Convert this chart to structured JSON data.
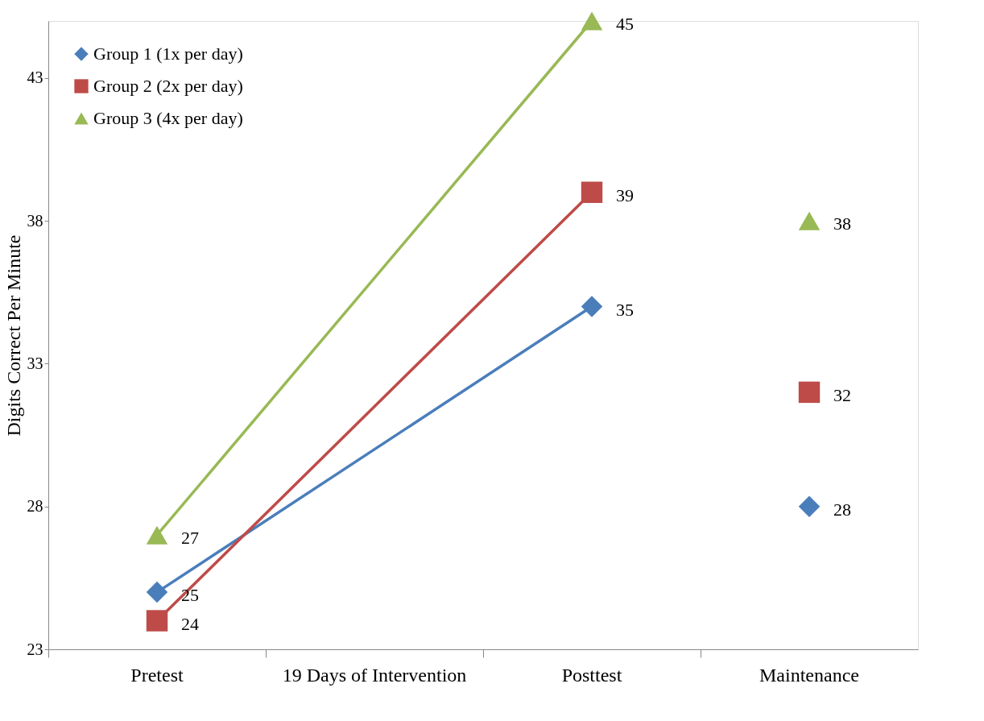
{
  "chart_data": {
    "type": "line",
    "ylabel": "Digits Correct Per Minute",
    "categories": [
      "Pretest",
      "19 Days of Intervention",
      "Posttest",
      "Maintenance"
    ],
    "ylim": [
      23,
      45
    ],
    "yticks": [
      23,
      28,
      33,
      38,
      43
    ],
    "grid": false,
    "legend": "top left",
    "data_labels": true,
    "series": [
      {
        "name": "Group 1 (1x per day)",
        "color": "#4a7ebb",
        "marker": "diamond",
        "values": [
          25,
          null,
          35,
          null
        ]
      },
      {
        "name": "Group 2 (2x per day)",
        "color": "#be4b48",
        "marker": "square",
        "values": [
          24,
          null,
          39,
          null
        ]
      },
      {
        "name": "Group 3 (4x per day)",
        "color": "#98b954",
        "marker": "triangle",
        "values": [
          27,
          null,
          45,
          null
        ]
      },
      {
        "type": "scatter",
        "color": "#4a7ebb",
        "marker": "diamond",
        "values": [
          null,
          null,
          null,
          28
        ]
      },
      {
        "type": "scatter",
        "color": "#be4b48",
        "marker": "square",
        "values": [
          null,
          null,
          null,
          32
        ]
      },
      {
        "type": "scatter",
        "color": "#98b954",
        "marker": "triangle",
        "values": [
          null,
          null,
          null,
          38
        ]
      }
    ]
  }
}
